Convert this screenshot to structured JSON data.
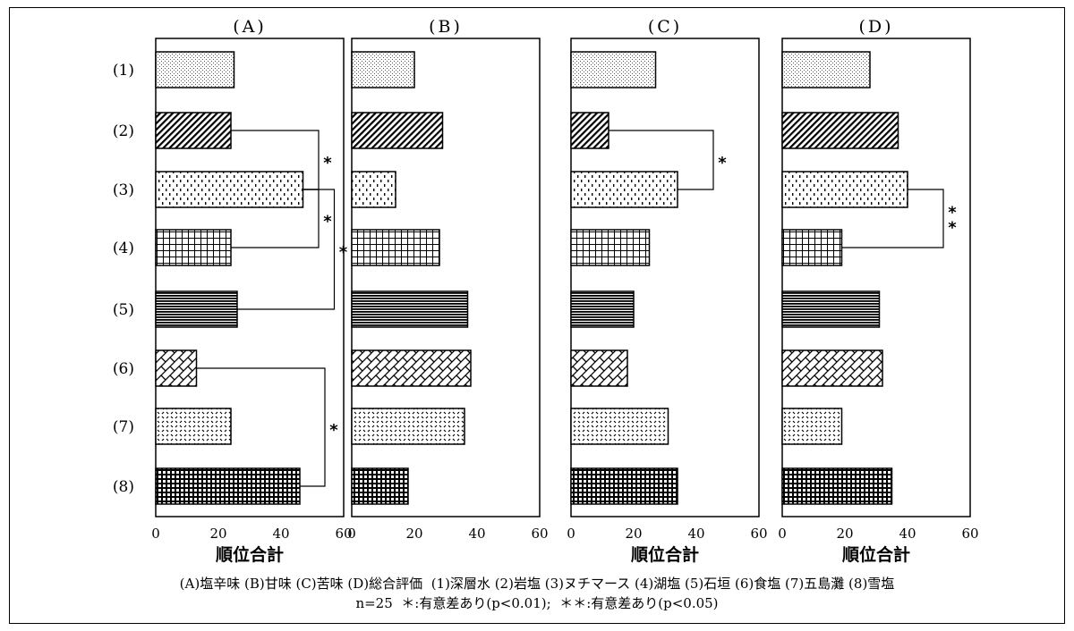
{
  "chart_data": {
    "type": "bar",
    "orientation": "horizontal",
    "categories": [
      "(1)",
      "(2)",
      "(3)",
      "(4)",
      "(5)",
      "(6)",
      "(7)",
      "(8)"
    ],
    "xlabel": "順位合計",
    "xlim": [
      0,
      60
    ],
    "xticks": [
      "0",
      "20",
      "40",
      "60"
    ],
    "grid": false,
    "panels": [
      {
        "title": "(A)",
        "values": [
          25,
          24,
          47,
          24,
          26,
          13,
          24,
          46
        ],
        "significance": [
          [
            "(2)",
            "(3)",
            "*"
          ],
          [
            "(3)",
            "(4)",
            "*"
          ],
          [
            "(3)",
            "(5)",
            "*"
          ],
          [
            "(6)",
            "(8)",
            "*"
          ]
        ]
      },
      {
        "title": "(B)",
        "values": [
          20,
          29,
          14,
          28,
          37,
          38,
          36,
          18
        ],
        "significance": []
      },
      {
        "title": "(C)",
        "values": [
          27,
          12,
          34,
          25,
          20,
          18,
          31,
          34
        ],
        "significance": [
          [
            "(2)",
            "(3)",
            "*"
          ]
        ]
      },
      {
        "title": "(D)",
        "values": [
          28,
          37,
          40,
          19,
          31,
          32,
          19,
          35
        ],
        "significance": [
          [
            "(3)",
            "(4)",
            "* *"
          ]
        ]
      }
    ]
  },
  "caption": {
    "line1": "(A)塩辛味 (B)甘味 (C)苦味 (D)総合評価  (1)深層水 (2)岩塩 (3)ヌチマース (4)湖塩 (5)石垣 (6)食塩 (7)五島灘 (8)雪塩",
    "line2": "n=25  ＊:有意差あり(p<0.01);  ＊＊:有意差あり(p<0.05)"
  }
}
